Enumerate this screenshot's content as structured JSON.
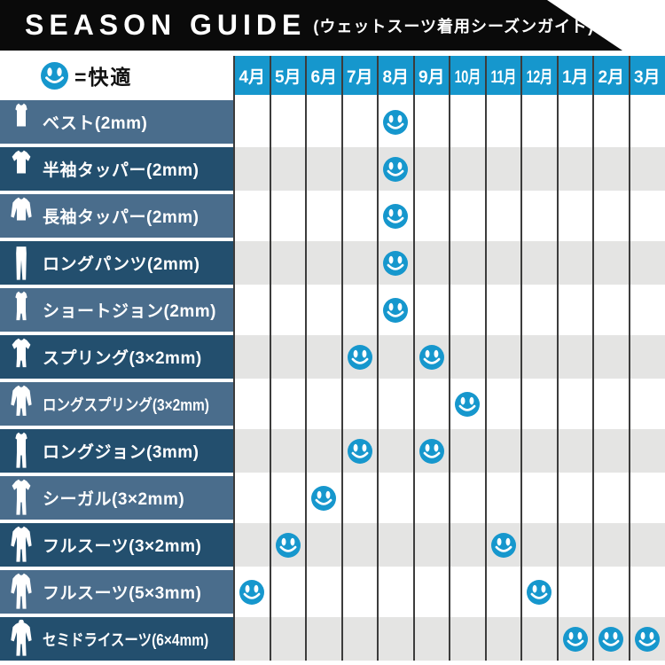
{
  "banner": {
    "title": "SEASON GUIDE",
    "subtitle": "(ウェットスーツ着用シーズンガイド)"
  },
  "legend": {
    "icon": "comfort-smiley-icon",
    "label": "=快適"
  },
  "months": [
    "4月",
    "5月",
    "6月",
    "7月",
    "8月",
    "9月",
    "10月",
    "11月",
    "12月",
    "1月",
    "2月",
    "3月"
  ],
  "rows": [
    {
      "label": "ベスト(2mm)",
      "icon": "vest-icon",
      "active_months": [
        4
      ]
    },
    {
      "label": "半袖タッパー(2mm)",
      "icon": "short-sleeve-top-icon",
      "active_months": [
        4
      ]
    },
    {
      "label": "長袖タッパー(2mm)",
      "icon": "long-sleeve-top-icon",
      "active_months": [
        4
      ]
    },
    {
      "label": "ロングパンツ(2mm)",
      "icon": "long-pants-icon",
      "active_months": [
        4
      ]
    },
    {
      "label": "ショートジョン(2mm)",
      "icon": "short-john-icon",
      "active_months": [
        4
      ]
    },
    {
      "label": "スプリング(3×2mm)",
      "icon": "spring-suit-icon",
      "active_months": [
        3,
        5
      ]
    },
    {
      "label": "ロングスプリング(3×2mm)",
      "icon": "long-spring-suit-icon",
      "active_months": [
        6
      ],
      "condensed": true
    },
    {
      "label": "ロングジョン(3mm)",
      "icon": "long-john-icon",
      "active_months": [
        3,
        5
      ]
    },
    {
      "label": "シーガル(3×2mm)",
      "icon": "seagull-suit-icon",
      "active_months": [
        2
      ]
    },
    {
      "label": "フルスーツ(3×2mm)",
      "icon": "full-suit-icon",
      "active_months": [
        1,
        7
      ]
    },
    {
      "label": "フルスーツ(5×3mm)",
      "icon": "full-suit-icon",
      "active_months": [
        0,
        8
      ]
    },
    {
      "label": "セミドライスーツ(6×4mm)",
      "icon": "semidry-suit-icon",
      "active_months": [
        9,
        10,
        11
      ],
      "condensed": true
    }
  ],
  "colors": {
    "accent_blue": "#1697cd",
    "label_light": "#4a6d8c",
    "label_dark": "#234f6e",
    "cell_gray": "#e4e4e3",
    "grid_line": "#3c3c3c",
    "banner_black": "#0a0a0a"
  },
  "chart_data": {
    "type": "table",
    "title": "SEASON GUIDE (ウェットスーツ着用シーズンガイド)",
    "marker_meaning": "smiley = 快適 (comfortable)",
    "columns": [
      "4月",
      "5月",
      "6月",
      "7月",
      "8月",
      "9月",
      "10月",
      "11月",
      "12月",
      "1月",
      "2月",
      "3月"
    ],
    "rows": [
      {
        "item": "ベスト(2mm)",
        "comfortable_months": [
          "8月"
        ]
      },
      {
        "item": "半袖タッパー(2mm)",
        "comfortable_months": [
          "8月"
        ]
      },
      {
        "item": "長袖タッパー(2mm)",
        "comfortable_months": [
          "8月"
        ]
      },
      {
        "item": "ロングパンツ(2mm)",
        "comfortable_months": [
          "8月"
        ]
      },
      {
        "item": "ショートジョン(2mm)",
        "comfortable_months": [
          "8月"
        ]
      },
      {
        "item": "スプリング(3×2mm)",
        "comfortable_months": [
          "7月",
          "9月"
        ]
      },
      {
        "item": "ロングスプリング(3×2mm)",
        "comfortable_months": [
          "10月"
        ]
      },
      {
        "item": "ロングジョン(3mm)",
        "comfortable_months": [
          "7月",
          "9月"
        ]
      },
      {
        "item": "シーガル(3×2mm)",
        "comfortable_months": [
          "6月"
        ]
      },
      {
        "item": "フルスーツ(3×2mm)",
        "comfortable_months": [
          "5月",
          "11月"
        ]
      },
      {
        "item": "フルスーツ(5×3mm)",
        "comfortable_months": [
          "4月",
          "12月"
        ]
      },
      {
        "item": "セミドライスーツ(6×4mm)",
        "comfortable_months": [
          "1月",
          "2月",
          "3月"
        ]
      }
    ]
  }
}
